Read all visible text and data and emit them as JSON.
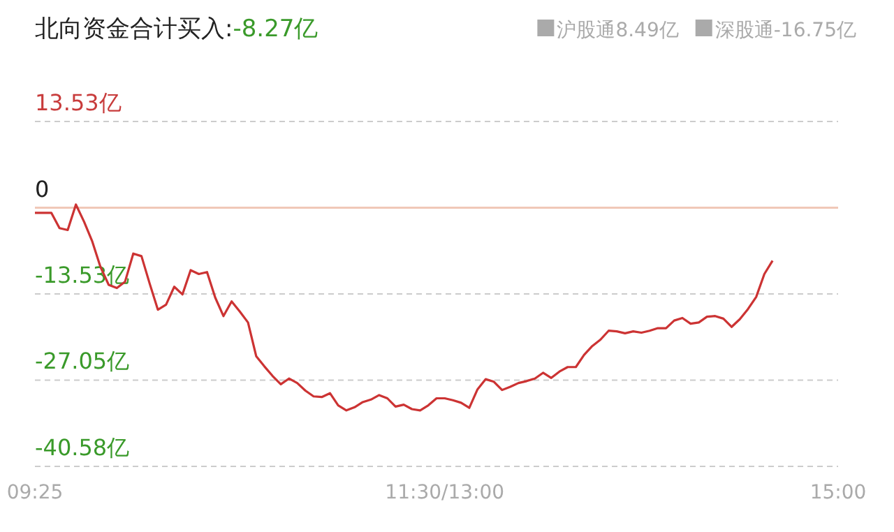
{
  "chart_data": {
    "type": "line",
    "title": "北向资金合计买入:-8.27亿",
    "annotations": [
      "沪股通8.49亿",
      "深股通-16.75亿"
    ],
    "categories": [
      "09:25",
      null,
      null,
      null,
      null,
      null,
      null,
      null,
      null,
      null,
      null,
      null,
      null,
      null,
      null,
      null,
      null,
      null,
      null,
      null,
      null,
      null,
      null,
      null,
      null,
      null,
      null,
      null,
      null,
      null,
      null,
      null,
      null,
      null,
      null,
      null,
      null,
      null,
      null,
      null,
      null,
      null,
      null,
      null,
      null,
      null,
      null,
      null,
      null,
      null,
      "11:30/13:00",
      null,
      null,
      null,
      null,
      null,
      null,
      null,
      null,
      null,
      null,
      null,
      null,
      null,
      null,
      null,
      null,
      null,
      null,
      null,
      null,
      null,
      null,
      null,
      null,
      null,
      null,
      null,
      null,
      null,
      null,
      null,
      null,
      null,
      null,
      null,
      null,
      null,
      null,
      null,
      null,
      null,
      null,
      null,
      null,
      null,
      null,
      null,
      "15:00"
    ],
    "series": [
      {
        "color": "#cc3333",
        "values": [
          -0.8,
          -0.8,
          -0.8,
          -3.2,
          -3.5,
          0.5,
          -2.2,
          -5.3,
          -9.3,
          -12.1,
          -12.6,
          -11.6,
          -7.2,
          -7.6,
          -11.9,
          -16.0,
          -15.2,
          -12.4,
          -13.6,
          -9.8,
          -10.4,
          -10.1,
          -14.1,
          -17.0,
          -14.7,
          -16.3,
          -18.0,
          -23.3,
          -24.9,
          -26.4,
          -27.7,
          -26.8,
          -27.5,
          -28.7,
          -29.6,
          -29.7,
          -29.1,
          -31.0,
          -31.8,
          -31.3,
          -30.5,
          -30.1,
          -29.4,
          -29.9,
          -31.2,
          -30.9,
          -31.6,
          -31.8,
          -31.0,
          -29.9,
          -29.9,
          -30.2,
          -30.6,
          -31.4,
          -28.5,
          -26.9,
          -27.3,
          -28.6,
          -28.1,
          -27.5,
          -27.2,
          -26.8,
          -25.9,
          -26.7,
          -25.7,
          -25.0,
          -25.0,
          -23.1,
          -21.7,
          -20.7,
          -19.3,
          -19.4,
          -19.7,
          -19.4,
          -19.6,
          -19.3,
          -18.9,
          -18.9,
          -17.7,
          -17.3,
          -18.2,
          -18.0,
          -17.1,
          -17.0,
          -17.4,
          -18.7,
          -17.5,
          -15.9,
          -14.0,
          -10.4,
          -8.3,
          null,
          null,
          null,
          null,
          null,
          null,
          null,
          null
        ]
      }
    ],
    "ylim": [
      -40.58,
      13.53
    ],
    "yticks": [
      {
        "value": 13.53,
        "label": "13.53亿"
      },
      {
        "value": 0,
        "label": "0"
      },
      {
        "value": -13.53,
        "label": "-13.53亿"
      },
      {
        "value": -27.05,
        "label": "-27.05亿"
      },
      {
        "value": -40.58,
        "label": "-40.58亿"
      }
    ],
    "grid": "y",
    "ref_lines": [
      {
        "axis": "y",
        "value": 0,
        "color": "#f0c8b8"
      }
    ],
    "marker": "none",
    "line_style": "solid"
  }
}
